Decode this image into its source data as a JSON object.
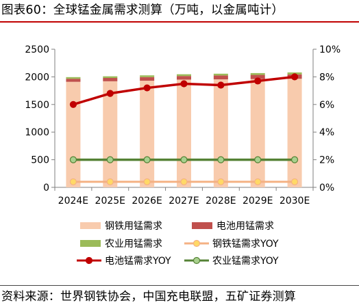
{
  "figure": {
    "title": "图表60：全球锰金属需求测算（万吨，以金属吨计）",
    "source": "资料来源：世界钢铁协会，中国充电联盟，五矿证券测算"
  },
  "colors": {
    "steel": "#f8cbad",
    "battery": "#c0504d",
    "agri": "#9bbb59",
    "steel_yoy": "#f4b183",
    "steel_yoy_marker": "#ffd966",
    "battery_yoy": "#c00000",
    "agri_yoy": "#548235",
    "agri_yoy_marker": "#a9d08e",
    "axis": "#7f7f7f"
  },
  "chart_data": {
    "type": "bar",
    "stacked": true,
    "categories": [
      "2024E",
      "2025E",
      "2026E",
      "2027E",
      "2028E",
      "2029E",
      "2030E"
    ],
    "y_left": {
      "min": 0,
      "max": 2500,
      "ticks": [
        "0",
        "500",
        "1000",
        "1500",
        "2000",
        "2500"
      ]
    },
    "y_right": {
      "min": 0,
      "max": 10,
      "unit": "%",
      "ticks": [
        "0%",
        "2%",
        "4%",
        "6%",
        "8%",
        "10%"
      ]
    },
    "series": [
      {
        "name": "钢铁用锰需求",
        "kind": "bar",
        "axis": "left",
        "values": [
          1910,
          1920,
          1930,
          1950,
          1955,
          1960,
          1965
        ]
      },
      {
        "name": "电池用锰需求",
        "kind": "bar",
        "axis": "left",
        "values": [
          55,
          60,
          65,
          65,
          70,
          75,
          80
        ]
      },
      {
        "name": "农业用锰需求",
        "kind": "bar",
        "axis": "left",
        "values": [
          30,
          30,
          32,
          32,
          32,
          33,
          35
        ]
      },
      {
        "name": "钢铁锰需求YOY",
        "kind": "line",
        "axis": "right",
        "values": [
          0.4,
          0.4,
          0.4,
          0.4,
          0.4,
          0.4,
          0.4
        ]
      },
      {
        "name": "电池锰需求YOY",
        "kind": "line",
        "axis": "right",
        "values": [
          6.0,
          6.8,
          7.2,
          7.5,
          7.4,
          7.7,
          8.0
        ]
      },
      {
        "name": "农业锰需求YOY",
        "kind": "line",
        "axis": "right",
        "values": [
          2.0,
          2.0,
          2.0,
          2.0,
          2.0,
          2.0,
          2.0
        ]
      }
    ],
    "legend_position": "bottom",
    "grid": false
  }
}
